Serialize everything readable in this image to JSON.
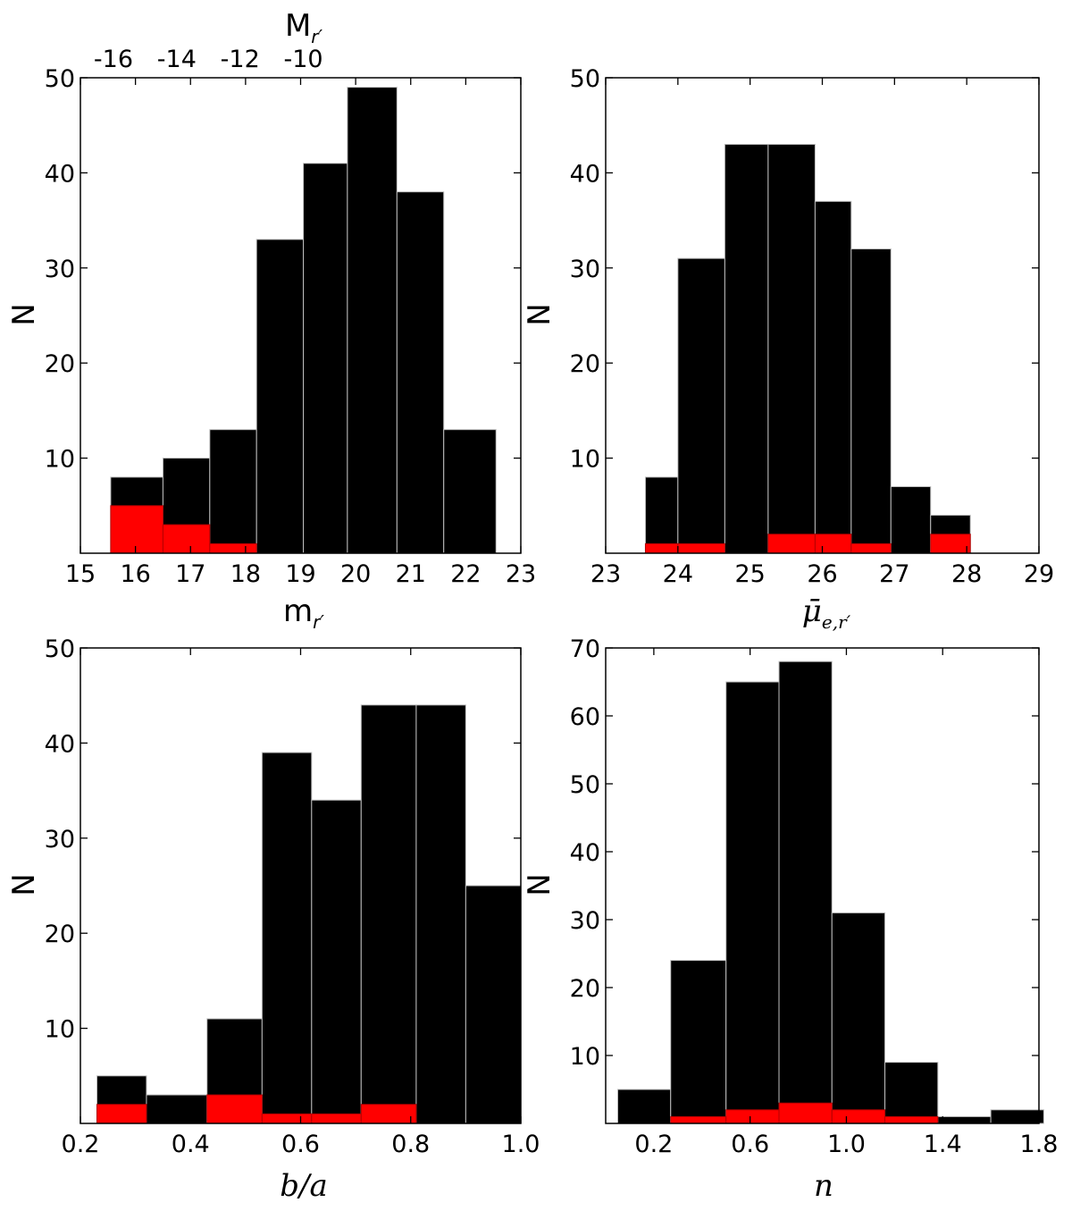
{
  "chart_data": [
    {
      "type": "bar",
      "histogram": true,
      "xlabel": "m",
      "xlabel_sub": "r′",
      "ylabel": "N",
      "top_xlabel": "M",
      "top_xlabel_sub": "r′",
      "xlim": [
        15,
        23
      ],
      "ylim": [
        0,
        50
      ],
      "xticks": [
        "15",
        "16",
        "17",
        "18",
        "19",
        "20",
        "21",
        "22",
        "23"
      ],
      "yticks": [
        "10",
        "20",
        "30",
        "40",
        "50"
      ],
      "top_ticks": [
        "-16",
        "-14",
        "-12",
        "-10"
      ],
      "top_tick_positions": [
        15.6,
        16.75,
        17.9,
        19.05
      ],
      "bin_edges": [
        15.55,
        16.5,
        17.35,
        18.2,
        19.05,
        19.85,
        20.75,
        21.6,
        22.55
      ],
      "series": [
        {
          "color": "#000000",
          "values": [
            8,
            10,
            13,
            33,
            41,
            49,
            38,
            13
          ]
        },
        {
          "color": "#ff0000",
          "values": [
            5,
            3,
            1,
            0,
            0,
            0,
            0,
            0
          ]
        }
      ]
    },
    {
      "type": "bar",
      "histogram": true,
      "xlabel": "μ̄",
      "xlabel_sub": "e,r′",
      "ylabel": "N",
      "xlim": [
        23,
        29
      ],
      "ylim": [
        0,
        50
      ],
      "xticks": [
        "23",
        "24",
        "25",
        "26",
        "27",
        "28",
        "29"
      ],
      "yticks": [
        "10",
        "20",
        "30",
        "40",
        "50"
      ],
      "bin_edges": [
        23.55,
        24.0,
        24.65,
        25.25,
        25.9,
        26.4,
        26.95,
        27.5,
        28.05
      ],
      "series": [
        {
          "color": "#000000",
          "values": [
            8,
            31,
            43,
            43,
            37,
            32,
            7,
            4
          ]
        },
        {
          "color": "#ff0000",
          "values": [
            1,
            1,
            0,
            2,
            2,
            1,
            0,
            2
          ]
        }
      ]
    },
    {
      "type": "bar",
      "histogram": true,
      "xlabel": "b/a",
      "ylabel": "N",
      "xlim": [
        0.2,
        1.0
      ],
      "ylim": [
        0,
        50
      ],
      "xticks": [
        "0.2",
        "0.4",
        "0.6",
        "0.8",
        "1.0"
      ],
      "yticks": [
        "10",
        "20",
        "30",
        "40",
        "50"
      ],
      "bin_edges": [
        0.23,
        0.32,
        0.43,
        0.53,
        0.62,
        0.71,
        0.81,
        0.9,
        1.0
      ],
      "series": [
        {
          "color": "#000000",
          "values": [
            5,
            3,
            11,
            39,
            34,
            44,
            44,
            25
          ]
        },
        {
          "color": "#ff0000",
          "values": [
            2,
            0,
            3,
            1,
            1,
            2,
            0,
            0
          ]
        }
      ]
    },
    {
      "type": "bar",
      "histogram": true,
      "xlabel": "n",
      "ylabel": "N",
      "xlim": [
        0.0,
        1.8
      ],
      "ylim": [
        0,
        70
      ],
      "xticks": [
        "0.2",
        "0.6",
        "1.0",
        "1.4",
        "1.8"
      ],
      "xtick_values": [
        0.2,
        0.6,
        1.0,
        1.4,
        1.8
      ],
      "yticks": [
        "10",
        "20",
        "30",
        "40",
        "50",
        "60",
        "70"
      ],
      "bin_edges": [
        0.05,
        0.27,
        0.5,
        0.72,
        0.94,
        1.16,
        1.38,
        1.6,
        1.82
      ],
      "series": [
        {
          "color": "#000000",
          "values": [
            5,
            24,
            65,
            68,
            31,
            9,
            1,
            2
          ]
        },
        {
          "color": "#ff0000",
          "values": [
            0,
            1,
            2,
            3,
            2,
            1,
            0,
            0
          ]
        }
      ]
    }
  ]
}
